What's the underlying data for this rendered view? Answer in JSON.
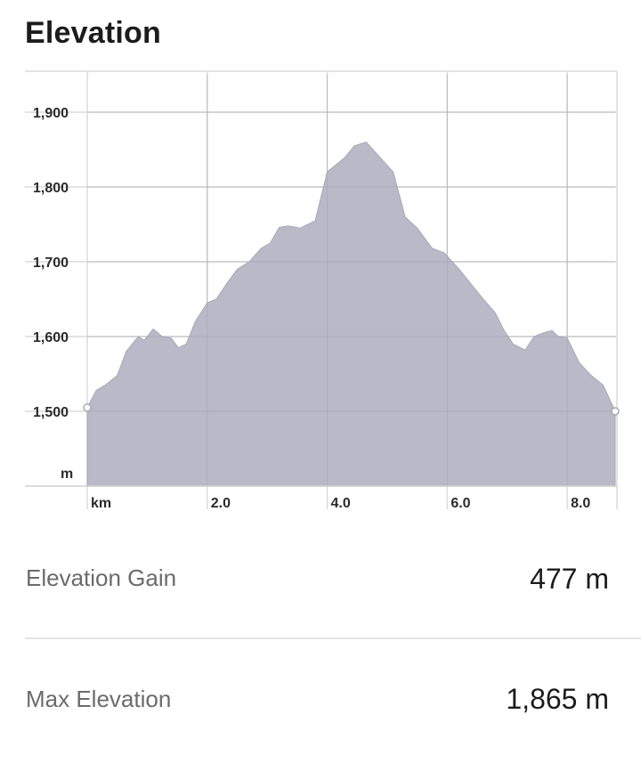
{
  "section_title": "Elevation",
  "chart_data": {
    "type": "area",
    "x_unit_label": "km",
    "y_unit_label": "m",
    "x_tick_labels": [
      "2.0",
      "4.0",
      "6.0",
      "8.0"
    ],
    "y_tick_labels": [
      "1,500",
      "1,600",
      "1,700",
      "1,800",
      "1,900"
    ],
    "xlim": [
      0,
      8.8
    ],
    "ylim": [
      1400,
      1950
    ],
    "x_ticks": [
      2.0,
      4.0,
      6.0,
      8.0
    ],
    "y_ticks": [
      1500,
      1600,
      1700,
      1800,
      1900
    ],
    "grid": true,
    "fill_color": "#b9b9c7",
    "line_color": "#a8a8b8",
    "x": [
      0.0,
      0.15,
      0.3,
      0.5,
      0.65,
      0.85,
      0.95,
      1.1,
      1.25,
      1.4,
      1.52,
      1.65,
      1.8,
      2.0,
      2.15,
      2.3,
      2.5,
      2.7,
      2.9,
      3.05,
      3.2,
      3.35,
      3.55,
      3.8,
      4.0,
      4.15,
      4.3,
      4.45,
      4.65,
      5.1,
      5.3,
      5.5,
      5.75,
      5.95,
      6.2,
      6.4,
      6.6,
      6.8,
      6.95,
      7.1,
      7.3,
      7.45,
      7.6,
      7.75,
      7.85,
      8.0,
      8.2,
      8.4,
      8.6,
      8.8
    ],
    "y": [
      1505,
      1528,
      1535,
      1548,
      1580,
      1600,
      1595,
      1610,
      1600,
      1598,
      1585,
      1590,
      1620,
      1645,
      1650,
      1668,
      1690,
      1700,
      1718,
      1725,
      1746,
      1748,
      1745,
      1755,
      1820,
      1830,
      1840,
      1855,
      1860,
      1820,
      1760,
      1745,
      1718,
      1712,
      1690,
      1670,
      1650,
      1632,
      1608,
      1590,
      1582,
      1600,
      1605,
      1608,
      1600,
      1598,
      1565,
      1548,
      1535,
      1500
    ]
  },
  "stats": {
    "gain": {
      "label": "Elevation Gain",
      "value": "477 m"
    },
    "max": {
      "label": "Max Elevation",
      "value": "1,865 m"
    }
  }
}
